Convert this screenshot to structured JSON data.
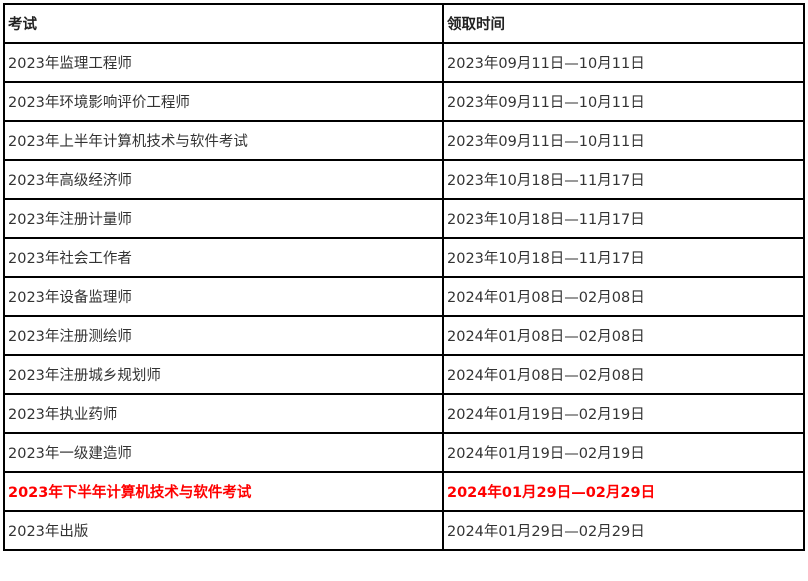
{
  "headers": [
    "考试",
    "领取时间"
  ],
  "highlight_color": "#ff0000",
  "rows": [
    {
      "exam": "2023年监理工程师",
      "time": "2023年09月11日—10月11日",
      "highlight": false
    },
    {
      "exam": "2023年环境影响评价工程师",
      "time": "2023年09月11日—10月11日",
      "highlight": false
    },
    {
      "exam": "2023年上半年计算机技术与软件考试",
      "time": "2023年09月11日—10月11日",
      "highlight": false
    },
    {
      "exam": "2023年高级经济师",
      "time": "2023年10月18日—11月17日",
      "highlight": false
    },
    {
      "exam": "2023年注册计量师",
      "time": "2023年10月18日—11月17日",
      "highlight": false
    },
    {
      "exam": "2023年社会工作者",
      "time": "2023年10月18日—11月17日",
      "highlight": false
    },
    {
      "exam": "2023年设备监理师",
      "time": "2024年01月08日—02月08日",
      "highlight": false
    },
    {
      "exam": "2023年注册测绘师",
      "time": "2024年01月08日—02月08日",
      "highlight": false
    },
    {
      "exam": "2023年注册城乡规划师",
      "time": "2024年01月08日—02月08日",
      "highlight": false
    },
    {
      "exam": "2023年执业药师",
      "time": "2024年01月19日—02月19日",
      "highlight": false
    },
    {
      "exam": "2023年一级建造师",
      "time": "2024年01月19日—02月19日",
      "highlight": false
    },
    {
      "exam": "2023年下半年计算机技术与软件考试",
      "time": "2024年01月29日—02月29日",
      "highlight": true
    },
    {
      "exam": "2023年出版",
      "time": "2024年01月29日—02月29日",
      "highlight": false
    }
  ]
}
